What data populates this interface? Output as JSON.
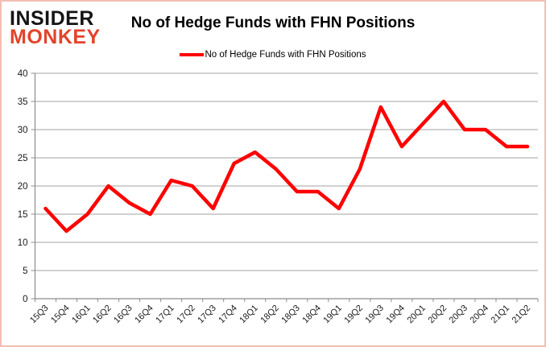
{
  "logo": {
    "line1": "INSIDER",
    "line2": "MONKEY"
  },
  "header": {
    "title": "No of Hedge Funds with FHN Positions"
  },
  "legend": {
    "label": "No of Hedge Funds with FHN Positions",
    "swatch_color": "#ff0000"
  },
  "chart_data": {
    "type": "line",
    "title": "No of Hedge Funds with FHN Positions",
    "categories": [
      "15Q3",
      "15Q4",
      "16Q1",
      "16Q2",
      "16Q3",
      "16Q4",
      "17Q1",
      "17Q2",
      "17Q3",
      "17Q4",
      "18Q1",
      "18Q2",
      "18Q3",
      "18Q4",
      "19Q1",
      "19Q2",
      "19Q3",
      "19Q4",
      "20Q1",
      "20Q2",
      "20Q3",
      "20Q4",
      "21Q1",
      "21Q2"
    ],
    "series": [
      {
        "name": "No of Hedge Funds with FHN Positions",
        "color": "#ff0000",
        "values": [
          16,
          12,
          15,
          20,
          17,
          15,
          21,
          20,
          16,
          24,
          26,
          23,
          19,
          19,
          16,
          23,
          34,
          27,
          31,
          35,
          30,
          30,
          27,
          27
        ]
      }
    ],
    "xlabel": "",
    "ylabel": "",
    "ylim": [
      0,
      40
    ],
    "ytick_interval": 5,
    "grid": "horizontal",
    "legend_position": "top-center"
  },
  "colors": {
    "line": "#ff0000",
    "gridline": "#a3a3a3",
    "axis": "#8c8c8c",
    "tick_label": "#1a1a1a",
    "logo_top": "#151515",
    "logo_bottom": "#e2442c",
    "frame_border": "#f3beb3"
  }
}
